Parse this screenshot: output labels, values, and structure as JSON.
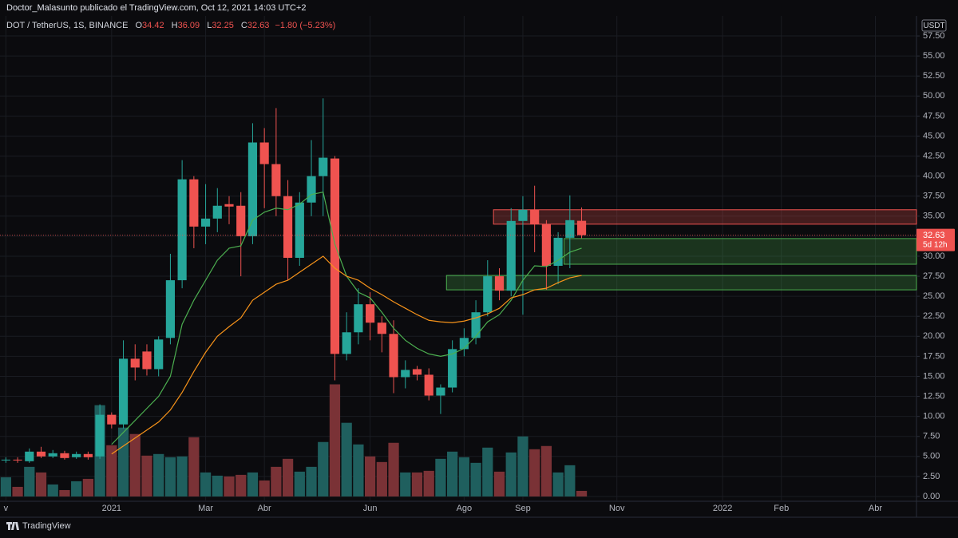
{
  "chart_data": {
    "type": "candlestick",
    "title": "Doctor_Malasunto publicado el TradingView.com, Oct 12, 2021 14:03 UTC+2",
    "symbol": "DOT / TetherUS, 1S, BINANCE",
    "ohlc_letters": [
      "O",
      "H",
      "L",
      "C"
    ],
    "change_label": "−1.80 (−5.23%)",
    "countdown": "5d 12h",
    "currency": "USDT",
    "brand": "TradingView",
    "up_color": "#26a69a",
    "down_color": "#ef5350",
    "up_volume_color": "#1f5f5e",
    "down_volume_color": "#7a3236",
    "grid": true,
    "categories": [
      "v",
      null,
      null,
      null,
      null,
      null,
      null,
      null,
      null,
      "2021",
      null,
      null,
      null,
      null,
      null,
      null,
      null,
      "Mar",
      null,
      null,
      null,
      null,
      "Abr",
      null,
      null,
      null,
      null,
      null,
      null,
      null,
      null,
      "Jun",
      null,
      null,
      null,
      null,
      null,
      null,
      null,
      "Ago",
      null,
      null,
      null,
      null,
      "Sep",
      null,
      null,
      null,
      null,
      null,
      null,
      null,
      "Nov",
      null,
      null,
      null,
      null,
      null,
      null,
      null,
      null,
      "2022",
      null,
      null,
      null,
      null,
      "Feb",
      null,
      null,
      null,
      null,
      null,
      null,
      null,
      "Abr",
      null,
      null,
      null
    ],
    "open": [
      4.5,
      4.6,
      4.4,
      5.6,
      5.0,
      5.4,
      4.9,
      5.3,
      5.0,
      10.2,
      9.0,
      17.2,
      18.1,
      15.9,
      19.8,
      27.0,
      39.6,
      33.7,
      34.7,
      36.5,
      36.3,
      32.5,
      44.2,
      41.5,
      37.5,
      29.8,
      36.7,
      40.0,
      42.2,
      17.8,
      20.5,
      24.0,
      21.7,
      20.3,
      14.9,
      15.9,
      15.2,
      12.6,
      13.6,
      18.4,
      19.8,
      23.0,
      27.5,
      25.7,
      34.4,
      35.8,
      34.0,
      28.8,
      32.3,
      34.42,
      null,
      null,
      null,
      null,
      null,
      null,
      null,
      null,
      null,
      null,
      null,
      null,
      null,
      null,
      null,
      null,
      null,
      null,
      null,
      null,
      null,
      null,
      null,
      null,
      null,
      null,
      null,
      null
    ],
    "high": [
      4.9,
      4.9,
      6.0,
      6.2,
      5.8,
      5.7,
      5.6,
      5.6,
      11.5,
      10.5,
      19.5,
      19.0,
      19.0,
      20.0,
      30.3,
      42.0,
      40.0,
      39.0,
      38.5,
      37.5,
      38.0,
      46.6,
      46.0,
      48.5,
      39.5,
      38.0,
      44.5,
      49.7,
      42.5,
      23.0,
      26.0,
      25.5,
      22.5,
      22.0,
      17.0,
      16.3,
      16.0,
      14.0,
      19.5,
      21.0,
      24.5,
      29.5,
      28.5,
      36.0,
      37.5,
      38.8,
      34.5,
      33.0,
      37.6,
      36.09,
      null,
      null,
      null,
      null,
      null,
      null,
      null,
      null,
      null,
      null,
      null,
      null,
      null,
      null,
      null,
      null,
      null,
      null,
      null,
      null,
      null,
      null,
      null,
      null,
      null,
      null,
      null,
      null
    ],
    "low": [
      4.2,
      4.2,
      4.2,
      4.8,
      4.8,
      4.6,
      4.7,
      4.6,
      4.7,
      8.5,
      8.5,
      14.5,
      15.1,
      15.0,
      19.0,
      26.0,
      31.0,
      31.5,
      33.0,
      34.0,
      27.5,
      31.5,
      36.0,
      35.0,
      27.0,
      28.8,
      35.0,
      35.0,
      14.5,
      17.0,
      19.0,
      19.5,
      18.0,
      12.9,
      13.5,
      14.5,
      12.0,
      10.3,
      13.0,
      17.5,
      19.0,
      22.5,
      24.5,
      25.0,
      22.7,
      30.5,
      25.8,
      26.5,
      28.5,
      32.25,
      null,
      null,
      null,
      null,
      null,
      null,
      null,
      null,
      null,
      null,
      null,
      null,
      null,
      null,
      null,
      null,
      null,
      null,
      null,
      null,
      null,
      null,
      null,
      null,
      null,
      null,
      null,
      null
    ],
    "close": [
      4.6,
      4.5,
      5.6,
      5.0,
      5.4,
      4.8,
      5.3,
      4.9,
      10.2,
      9.0,
      17.2,
      16.1,
      15.9,
      19.6,
      27.0,
      39.6,
      33.7,
      34.7,
      36.3,
      36.2,
      32.5,
      44.2,
      41.5,
      37.5,
      29.8,
      36.7,
      40.0,
      42.3,
      17.8,
      20.5,
      24.0,
      21.7,
      20.3,
      14.9,
      15.8,
      15.2,
      12.6,
      13.6,
      18.4,
      19.8,
      23.0,
      27.5,
      25.7,
      34.4,
      35.8,
      34.0,
      28.8,
      32.3,
      34.5,
      32.63,
      null,
      null,
      null,
      null,
      null,
      null,
      null,
      null,
      null,
      null,
      null,
      null,
      null,
      null,
      null,
      null,
      null,
      null,
      null,
      null,
      null,
      null,
      null,
      null,
      null,
      null,
      null,
      null
    ],
    "volume": [
      2.4,
      1.2,
      3.7,
      3.0,
      1.5,
      0.8,
      1.9,
      2.2,
      11.4,
      6.4,
      8.6,
      7.8,
      5.1,
      5.3,
      4.9,
      5.0,
      7.4,
      3.0,
      2.6,
      2.5,
      2.7,
      3.0,
      2.0,
      3.7,
      4.7,
      3.1,
      3.7,
      6.8,
      14.0,
      9.2,
      6.5,
      5.0,
      4.3,
      6.7,
      3.0,
      3.0,
      3.2,
      4.7,
      5.6,
      4.9,
      4.2,
      6.1,
      3.1,
      5.5,
      7.5,
      5.9,
      6.3,
      3.0,
      3.9,
      0.7,
      null,
      null,
      null,
      null,
      null,
      null,
      null,
      null,
      null,
      null,
      null,
      null,
      null,
      null,
      null,
      null,
      null,
      null,
      null,
      null,
      null,
      null,
      null,
      null,
      null,
      null,
      null,
      null
    ],
    "lines": [
      {
        "color": "#4caf50",
        "values": [
          null,
          null,
          null,
          null,
          null,
          null,
          null,
          null,
          null,
          6.5,
          8.0,
          9.5,
          11.0,
          12.5,
          15.0,
          21.5,
          24.5,
          27.0,
          29.5,
          31.0,
          31.3,
          34.5,
          35.5,
          36.0,
          35.8,
          36.5,
          37.7,
          38.0,
          31.5,
          27.5,
          25.5,
          24.8,
          23.0,
          21.0,
          19.5,
          18.5,
          17.8,
          17.5,
          17.8,
          18.5,
          20.0,
          21.8,
          22.7,
          24.5,
          27.0,
          28.8,
          28.7,
          29.5,
          30.5,
          31.0,
          null,
          null,
          null,
          null,
          null,
          null,
          null,
          null,
          null,
          null,
          null,
          null,
          null,
          null,
          null,
          null,
          null,
          null,
          null,
          null,
          null,
          null,
          null,
          null,
          null,
          null,
          null,
          null
        ]
      },
      {
        "color": "#f7931a",
        "values": [
          null,
          null,
          null,
          null,
          null,
          null,
          null,
          null,
          null,
          5.3,
          6.3,
          7.3,
          8.3,
          9.3,
          10.8,
          13.0,
          15.6,
          18.0,
          20.0,
          21.2,
          22.3,
          24.5,
          25.5,
          26.5,
          27.0,
          28.0,
          29.0,
          30.0,
          28.5,
          27.5,
          27.0,
          26.0,
          25.2,
          24.3,
          23.5,
          22.7,
          22.0,
          21.8,
          21.7,
          21.9,
          22.3,
          22.8,
          23.5,
          24.8,
          25.2,
          25.8,
          26.0,
          26.7,
          27.3,
          27.6,
          null,
          null,
          null,
          null,
          null,
          null,
          null,
          null,
          null,
          null,
          null,
          null,
          null,
          null,
          null,
          null,
          null,
          null,
          null,
          null,
          null,
          null,
          null,
          null,
          null,
          null,
          null,
          null
        ]
      }
    ],
    "zones": [
      {
        "start": 42,
        "low": 34.0,
        "high": 35.8,
        "color": "#ef5350"
      },
      {
        "start": 48,
        "low": 29.0,
        "high": 32.2,
        "color": "#4caf50"
      },
      {
        "start": 38,
        "low": 25.8,
        "high": 27.6,
        "color": "#4caf50"
      }
    ],
    "ylim": [
      -0.6,
      59.0
    ],
    "yticks": [
      {
        "value": 0,
        "label": "0.00"
      },
      {
        "value": 2.5,
        "label": "2.50"
      },
      {
        "value": 5,
        "label": "5.00"
      },
      {
        "value": 7.5,
        "label": "7.50"
      },
      {
        "value": 10,
        "label": "10.00"
      },
      {
        "value": 12.5,
        "label": "12.50"
      },
      {
        "value": 15,
        "label": "15.00"
      },
      {
        "value": 17.5,
        "label": "17.50"
      },
      {
        "value": 20,
        "label": "20.00"
      },
      {
        "value": 22.5,
        "label": "22.50"
      },
      {
        "value": 25,
        "label": "25.00"
      },
      {
        "value": 27.5,
        "label": "27.50"
      },
      {
        "value": 30,
        "label": "30.00"
      },
      {
        "value": 32.5,
        "label": "32.50"
      },
      {
        "value": 35,
        "label": "35.00"
      },
      {
        "value": 37.5,
        "label": "37.50"
      },
      {
        "value": 40,
        "label": "40.00"
      },
      {
        "value": 42.5,
        "label": "42.50"
      },
      {
        "value": 45,
        "label": "45.00"
      },
      {
        "value": 47.5,
        "label": "47.50"
      },
      {
        "value": 50,
        "label": "50.00"
      },
      {
        "value": 52.5,
        "label": "52.50"
      },
      {
        "value": 55,
        "label": "55.00"
      },
      {
        "value": 57.5,
        "label": "57.50"
      }
    ]
  }
}
